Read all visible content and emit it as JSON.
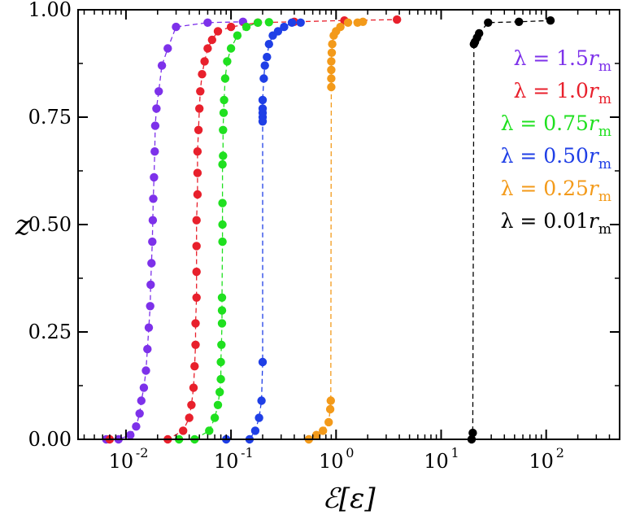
{
  "chart_data": {
    "type": "scatter",
    "title": "",
    "xlabel": "ℰ[ε]",
    "ylabel": "z",
    "xscale": "log",
    "xlim": [
      0.0035,
      500
    ],
    "ylim": [
      0,
      1
    ],
    "grid": false,
    "legend_position": "top-right",
    "xtick_labels": [
      "10",
      "10",
      "10",
      "10",
      "10"
    ],
    "xtick_exponents": [
      "-2",
      "-1",
      "0",
      "1",
      "2"
    ],
    "ytick_labels": [
      "0.00",
      "0.25",
      "0.50",
      "0.75",
      "1.00"
    ],
    "series": [
      {
        "name": "λ = 1.5rm",
        "color": "#7d31ea",
        "x": [
          0.0065,
          0.0085,
          0.011,
          0.0125,
          0.0135,
          0.014,
          0.0148,
          0.0155,
          0.016,
          0.0165,
          0.017,
          0.0172,
          0.0175,
          0.0178,
          0.018,
          0.0182,
          0.0185,
          0.0188,
          0.019,
          0.0195,
          0.0205,
          0.022,
          0.025,
          0.03,
          0.06,
          0.13
        ],
        "y": [
          0.0,
          0.0,
          0.01,
          0.03,
          0.06,
          0.09,
          0.12,
          0.16,
          0.21,
          0.26,
          0.31,
          0.36,
          0.41,
          0.46,
          0.51,
          0.56,
          0.61,
          0.67,
          0.73,
          0.77,
          0.81,
          0.87,
          0.91,
          0.96,
          0.97,
          0.972
        ]
      },
      {
        "name": "λ = 1.0rm",
        "color": "#e8202c",
        "x": [
          0.007,
          0.025,
          0.035,
          0.04,
          0.042,
          0.044,
          0.045,
          0.046,
          0.046,
          0.047,
          0.047,
          0.047,
          0.047,
          0.048,
          0.048,
          0.048,
          0.049,
          0.05,
          0.051,
          0.053,
          0.056,
          0.06,
          0.066,
          0.075,
          0.1,
          0.18,
          0.4,
          1.2,
          3.8
        ],
        "y": [
          0.0,
          0.0,
          0.02,
          0.05,
          0.08,
          0.12,
          0.17,
          0.22,
          0.27,
          0.33,
          0.39,
          0.45,
          0.51,
          0.57,
          0.62,
          0.67,
          0.72,
          0.77,
          0.81,
          0.85,
          0.88,
          0.91,
          0.93,
          0.95,
          0.96,
          0.97,
          0.972,
          0.975,
          0.977
        ]
      },
      {
        "name": "λ = 0.75rm",
        "color": "#1fe01f",
        "x": [
          0.032,
          0.045,
          0.062,
          0.07,
          0.075,
          0.078,
          0.08,
          0.08,
          0.081,
          0.082,
          0.082,
          0.082,
          0.083,
          0.083,
          0.083,
          0.083,
          0.084,
          0.084,
          0.085,
          0.086,
          0.088,
          0.092,
          0.1,
          0.115,
          0.14,
          0.18,
          0.23
        ],
        "y": [
          0.0,
          0.0,
          0.02,
          0.05,
          0.08,
          0.11,
          0.14,
          0.18,
          0.22,
          0.27,
          0.3,
          0.33,
          0.46,
          0.5,
          0.55,
          0.64,
          0.66,
          0.72,
          0.76,
          0.79,
          0.84,
          0.88,
          0.91,
          0.94,
          0.96,
          0.97,
          0.971
        ]
      },
      {
        "name": "λ = 0.50rm",
        "color": "#1f3fe6",
        "x": [
          0.09,
          0.15,
          0.17,
          0.185,
          0.195,
          0.2,
          0.2,
          0.2,
          0.2,
          0.2,
          0.2,
          0.205,
          0.21,
          0.22,
          0.23,
          0.25,
          0.28,
          0.32,
          0.38,
          0.46
        ],
        "y": [
          0.0,
          0.0,
          0.02,
          0.05,
          0.09,
          0.18,
          0.74,
          0.75,
          0.76,
          0.77,
          0.79,
          0.84,
          0.87,
          0.89,
          0.92,
          0.94,
          0.95,
          0.96,
          0.97,
          0.97
        ]
      },
      {
        "name": "λ = 0.25rm",
        "color": "#f39a1a",
        "x": [
          0.55,
          0.65,
          0.75,
          0.85,
          0.88,
          0.89,
          0.9,
          0.9,
          0.9,
          0.9,
          0.91,
          0.92,
          0.95,
          1.0,
          1.1,
          1.3,
          1.6,
          1.8
        ],
        "y": [
          0.0,
          0.01,
          0.02,
          0.04,
          0.07,
          0.09,
          0.82,
          0.84,
          0.86,
          0.88,
          0.9,
          0.92,
          0.94,
          0.95,
          0.96,
          0.97,
          0.97,
          0.972
        ]
      },
      {
        "name": "λ = 0.01rm",
        "color": "#000000",
        "x": [
          19.5,
          20.0,
          20.5,
          21,
          22,
          23,
          28,
          55,
          110
        ],
        "y": [
          0.0,
          0.015,
          0.92,
          0.925,
          0.935,
          0.945,
          0.97,
          0.972,
          0.975
        ]
      }
    ]
  }
}
